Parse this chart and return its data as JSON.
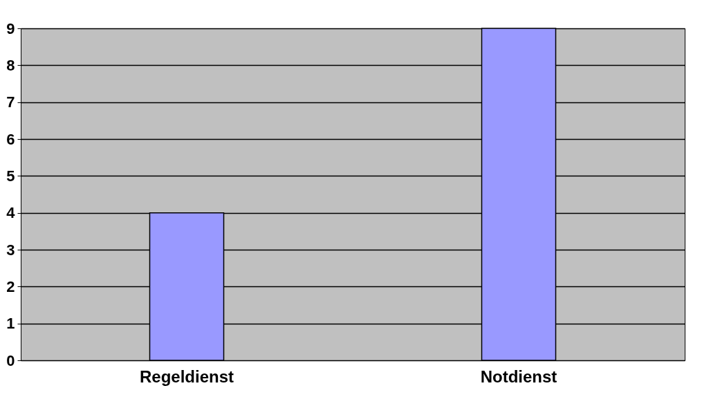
{
  "chart_data": {
    "type": "bar",
    "categories": [
      "Regeldienst",
      "Notdienst"
    ],
    "values": [
      4,
      9
    ],
    "color": "#9999ff",
    "ylim": [
      0,
      9
    ],
    "yticks": [
      0,
      1,
      2,
      3,
      4,
      5,
      6,
      7,
      8,
      9
    ],
    "grid": "y"
  }
}
